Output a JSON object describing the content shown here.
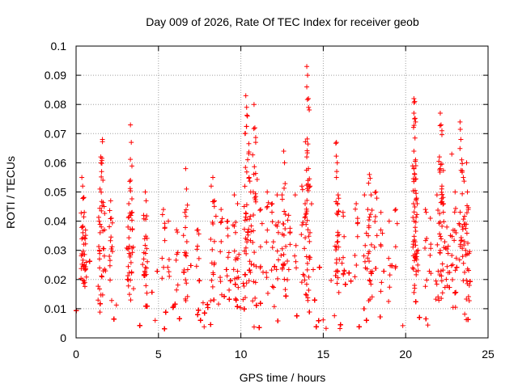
{
  "chart_data": {
    "type": "scatter",
    "title": "Day 009 of 2026, Rate Of TEC Index for receiver geob",
    "xlabel": "GPS time / hours",
    "ylabel": "ROTI / TECUs",
    "xlim": [
      0,
      25
    ],
    "ylim": [
      0,
      0.1
    ],
    "xticks": [
      0,
      5,
      10,
      15,
      20,
      25
    ],
    "xtick_labels": [
      "0",
      "5",
      "10",
      "15",
      "20",
      "25"
    ],
    "yticks": [
      0,
      0.01,
      0.02,
      0.03,
      0.04,
      0.05,
      0.06,
      0.07,
      0.08,
      0.09,
      0.1
    ],
    "ytick_labels": [
      "0",
      "0.01",
      "0.02",
      "0.03",
      "0.04",
      "0.05",
      "0.06",
      "0.07",
      "0.08",
      "0.09",
      "0.1"
    ],
    "grid": true,
    "marker": "+",
    "color": "#ff0000",
    "series": [
      {
        "name": "ROTI",
        "points": [
          [
            0.35,
            0.055
          ],
          [
            0.4,
            0.052
          ],
          [
            0.45,
            0.048
          ],
          [
            0.5,
            0.043
          ],
          [
            0.4,
            0.038
          ],
          [
            0.55,
            0.034
          ],
          [
            1.5,
            0.062
          ],
          [
            1.6,
            0.068
          ],
          [
            1.55,
            0.057
          ],
          [
            1.45,
            0.051
          ],
          [
            1.7,
            0.045
          ],
          [
            1.4,
            0.04
          ],
          [
            2.1,
            0.047
          ],
          [
            2.15,
            0.041
          ],
          [
            3.3,
            0.073
          ],
          [
            3.35,
            0.067
          ],
          [
            3.3,
            0.054
          ],
          [
            3.2,
            0.046
          ],
          [
            3.4,
            0.043
          ],
          [
            3.15,
            0.038
          ],
          [
            4.2,
            0.05
          ],
          [
            4.25,
            0.047
          ],
          [
            4.1,
            0.042
          ],
          [
            5.3,
            0.044
          ],
          [
            5.6,
            0.04
          ],
          [
            6.1,
            0.037
          ],
          [
            6.65,
            0.058
          ],
          [
            6.7,
            0.051
          ],
          [
            6.6,
            0.043
          ],
          [
            7.4,
            0.037
          ],
          [
            8.3,
            0.055
          ],
          [
            8.2,
            0.052
          ],
          [
            8.4,
            0.047
          ],
          [
            8.8,
            0.044
          ],
          [
            9.2,
            0.04
          ],
          [
            9.6,
            0.049
          ],
          [
            9.8,
            0.046
          ],
          [
            10.3,
            0.083
          ],
          [
            10.35,
            0.079
          ],
          [
            10.4,
            0.076
          ],
          [
            10.25,
            0.07
          ],
          [
            10.5,
            0.055
          ],
          [
            10.6,
            0.05
          ],
          [
            10.2,
            0.045
          ],
          [
            10.8,
            0.08
          ],
          [
            10.85,
            0.072
          ],
          [
            10.9,
            0.067
          ],
          [
            10.75,
            0.05
          ],
          [
            11.2,
            0.044
          ],
          [
            11.6,
            0.05
          ],
          [
            11.9,
            0.046
          ],
          [
            12.2,
            0.049
          ],
          [
            12.6,
            0.064
          ],
          [
            12.65,
            0.06
          ],
          [
            12.5,
            0.049
          ],
          [
            12.9,
            0.042
          ],
          [
            13.3,
            0.049
          ],
          [
            13.7,
            0.052
          ],
          [
            14.0,
            0.093
          ],
          [
            14.05,
            0.09
          ],
          [
            14.0,
            0.086
          ],
          [
            14.1,
            0.082
          ],
          [
            14.0,
            0.062
          ],
          [
            14.1,
            0.058
          ],
          [
            14.2,
            0.052
          ],
          [
            13.9,
            0.046
          ],
          [
            15.8,
            0.067
          ],
          [
            15.85,
            0.06
          ],
          [
            15.8,
            0.055
          ],
          [
            15.9,
            0.049
          ],
          [
            16.2,
            0.043
          ],
          [
            17.0,
            0.046
          ],
          [
            17.5,
            0.049
          ],
          [
            17.8,
            0.056
          ],
          [
            17.75,
            0.053
          ],
          [
            17.9,
            0.049
          ],
          [
            17.7,
            0.044
          ],
          [
            18.2,
            0.05
          ],
          [
            18.5,
            0.043
          ],
          [
            19.0,
            0.04
          ],
          [
            19.4,
            0.044
          ],
          [
            20.5,
            0.082
          ],
          [
            20.55,
            0.081
          ],
          [
            20.5,
            0.077
          ],
          [
            20.6,
            0.074
          ],
          [
            20.5,
            0.064
          ],
          [
            20.6,
            0.061
          ],
          [
            20.55,
            0.056
          ],
          [
            20.7,
            0.046
          ],
          [
            21.2,
            0.044
          ],
          [
            21.5,
            0.041
          ],
          [
            21.9,
            0.049
          ],
          [
            22.1,
            0.077
          ],
          [
            22.15,
            0.073
          ],
          [
            22.2,
            0.071
          ],
          [
            22.05,
            0.062
          ],
          [
            22.1,
            0.058
          ],
          [
            22.2,
            0.052
          ],
          [
            22.3,
            0.046
          ],
          [
            22.5,
            0.038
          ],
          [
            22.8,
            0.063
          ],
          [
            23.0,
            0.05
          ],
          [
            23.3,
            0.074
          ],
          [
            23.35,
            0.068
          ],
          [
            23.4,
            0.061
          ],
          [
            23.5,
            0.055
          ],
          [
            23.7,
            0.06
          ],
          [
            23.75,
            0.05
          ],
          [
            23.8,
            0.044
          ],
          [
            23.6,
            0.039
          ]
        ]
      }
    ]
  }
}
